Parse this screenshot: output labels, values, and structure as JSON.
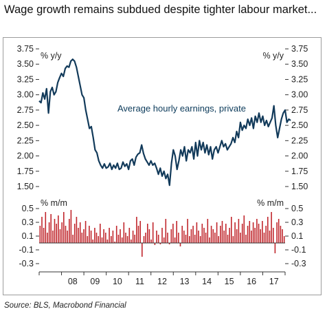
{
  "title": "Wage growth remains subdued despite tighter labour market...",
  "source": "Source: BLS, Macrobond Financial",
  "colors": {
    "line": "#123a5a",
    "bars": "#c0262c",
    "axis": "#333333",
    "frame": "#9c9c9c"
  },
  "chart_data": [
    {
      "type": "line",
      "title": "",
      "series": [
        {
          "name": "Average hourly earnings, private"
        }
      ],
      "unit_left": "% y/y",
      "unit_right": "% y/y",
      "ylim": [
        1.5,
        3.75
      ],
      "yticks": [
        "3.75",
        "3.50",
        "3.25",
        "3.00",
        "2.75",
        "2.50",
        "2.25",
        "2.00",
        "1.75",
        "1.50"
      ],
      "xlim": [
        2007.0,
        2018.0
      ],
      "values": [
        [
          2007.0,
          2.9
        ],
        [
          2007.083,
          2.87
        ],
        [
          2007.167,
          3.03
        ],
        [
          2007.25,
          2.93
        ],
        [
          2007.333,
          3.1
        ],
        [
          2007.417,
          2.7
        ],
        [
          2007.5,
          3.05
        ],
        [
          2007.583,
          3.12
        ],
        [
          2007.667,
          3.0
        ],
        [
          2007.75,
          3.05
        ],
        [
          2007.833,
          3.2
        ],
        [
          2007.917,
          3.28
        ],
        [
          2008.0,
          3.35
        ],
        [
          2008.083,
          3.3
        ],
        [
          2008.167,
          3.43
        ],
        [
          2008.25,
          3.47
        ],
        [
          2008.333,
          3.45
        ],
        [
          2008.417,
          3.55
        ],
        [
          2008.5,
          3.58
        ],
        [
          2008.583,
          3.55
        ],
        [
          2008.667,
          3.45
        ],
        [
          2008.75,
          3.3
        ],
        [
          2008.833,
          3.15
        ],
        [
          2008.917,
          3.0
        ],
        [
          2009.0,
          2.95
        ],
        [
          2009.083,
          2.75
        ],
        [
          2009.167,
          2.6
        ],
        [
          2009.25,
          2.45
        ],
        [
          2009.333,
          2.48
        ],
        [
          2009.417,
          2.3
        ],
        [
          2009.5,
          2.1
        ],
        [
          2009.583,
          2.05
        ],
        [
          2009.667,
          1.92
        ],
        [
          2009.75,
          1.85
        ],
        [
          2009.833,
          1.8
        ],
        [
          2009.917,
          1.87
        ],
        [
          2010.0,
          1.8
        ],
        [
          2010.083,
          1.82
        ],
        [
          2010.167,
          1.88
        ],
        [
          2010.25,
          1.78
        ],
        [
          2010.333,
          1.85
        ],
        [
          2010.417,
          1.8
        ],
        [
          2010.5,
          1.88
        ],
        [
          2010.583,
          1.78
        ],
        [
          2010.667,
          1.8
        ],
        [
          2010.75,
          1.9
        ],
        [
          2010.833,
          1.83
        ],
        [
          2010.917,
          1.87
        ],
        [
          2011.0,
          1.78
        ],
        [
          2011.083,
          1.92
        ],
        [
          2011.167,
          1.95
        ],
        [
          2011.25,
          1.85
        ],
        [
          2011.333,
          1.98
        ],
        [
          2011.417,
          2.03
        ],
        [
          2011.5,
          2.05
        ],
        [
          2011.583,
          2.18
        ],
        [
          2011.667,
          2.04
        ],
        [
          2011.75,
          1.95
        ],
        [
          2011.833,
          1.9
        ],
        [
          2011.917,
          1.85
        ],
        [
          2012.0,
          1.92
        ],
        [
          2012.083,
          1.85
        ],
        [
          2012.167,
          1.88
        ],
        [
          2012.25,
          1.8
        ],
        [
          2012.333,
          1.7
        ],
        [
          2012.417,
          1.8
        ],
        [
          2012.5,
          1.67
        ],
        [
          2012.583,
          1.75
        ],
        [
          2012.667,
          1.63
        ],
        [
          2012.75,
          1.7
        ],
        [
          2012.833,
          1.52
        ],
        [
          2012.917,
          1.88
        ],
        [
          2013.0,
          2.1
        ],
        [
          2013.083,
          2.0
        ],
        [
          2013.167,
          1.78
        ],
        [
          2013.25,
          1.92
        ],
        [
          2013.333,
          2.1
        ],
        [
          2013.417,
          2.0
        ],
        [
          2013.5,
          2.15
        ],
        [
          2013.583,
          1.92
        ],
        [
          2013.667,
          2.1
        ],
        [
          2013.75,
          2.05
        ],
        [
          2013.833,
          2.15
        ],
        [
          2013.917,
          1.95
        ],
        [
          2014.0,
          2.22
        ],
        [
          2014.083,
          2.0
        ],
        [
          2014.167,
          2.25
        ],
        [
          2014.25,
          2.1
        ],
        [
          2014.333,
          2.22
        ],
        [
          2014.417,
          2.05
        ],
        [
          2014.5,
          2.18
        ],
        [
          2014.583,
          2.02
        ],
        [
          2014.667,
          2.15
        ],
        [
          2014.75,
          1.95
        ],
        [
          2014.833,
          2.1
        ],
        [
          2014.917,
          2.15
        ],
        [
          2015.0,
          2.05
        ],
        [
          2015.083,
          2.15
        ],
        [
          2015.167,
          2.25
        ],
        [
          2015.25,
          2.15
        ],
        [
          2015.333,
          2.2
        ],
        [
          2015.417,
          2.1
        ],
        [
          2015.5,
          2.15
        ],
        [
          2015.583,
          2.2
        ],
        [
          2015.667,
          2.3
        ],
        [
          2015.75,
          2.22
        ],
        [
          2015.833,
          2.4
        ],
        [
          2015.917,
          2.3
        ],
        [
          2016.0,
          2.55
        ],
        [
          2016.083,
          2.42
        ],
        [
          2016.167,
          2.5
        ],
        [
          2016.25,
          2.45
        ],
        [
          2016.333,
          2.6
        ],
        [
          2016.417,
          2.5
        ],
        [
          2016.5,
          2.62
        ],
        [
          2016.583,
          2.45
        ],
        [
          2016.667,
          2.65
        ],
        [
          2016.75,
          2.55
        ],
        [
          2016.833,
          2.7
        ],
        [
          2016.917,
          2.55
        ],
        [
          2017.0,
          2.65
        ],
        [
          2017.083,
          2.5
        ],
        [
          2017.167,
          2.58
        ],
        [
          2017.25,
          2.48
        ],
        [
          2017.333,
          2.55
        ],
        [
          2017.417,
          2.62
        ],
        [
          2017.5,
          2.82
        ],
        [
          2017.583,
          2.5
        ],
        [
          2017.667,
          2.3
        ],
        [
          2017.75,
          2.45
        ],
        [
          2017.833,
          2.6
        ],
        [
          2017.917,
          2.7
        ],
        [
          2018.0,
          2.75
        ],
        [
          2018.083,
          2.55
        ],
        [
          2018.167,
          2.6
        ],
        [
          2018.25,
          2.58
        ]
      ]
    },
    {
      "type": "bar",
      "title": "",
      "unit_left": "% m/m",
      "unit_right": "% m/m",
      "ylim": [
        -0.3,
        0.5
      ],
      "yticks": [
        "0.5",
        "0.3",
        "0.1",
        "-0.1",
        "-0.3"
      ],
      "xlim": [
        2007.0,
        2018.0
      ],
      "xticks": [
        "08",
        "09",
        "10",
        "11",
        "12",
        "13",
        "14",
        "15",
        "16",
        "17"
      ],
      "values": [
        0.25,
        0.38,
        0.22,
        0.45,
        0.15,
        0.3,
        0.42,
        0.18,
        0.35,
        0.28,
        0.4,
        0.2,
        0.3,
        0.45,
        0.25,
        0.18,
        0.35,
        0.48,
        0.12,
        0.28,
        0.38,
        0.22,
        0.3,
        0.15,
        0.2,
        0.32,
        0.1,
        0.25,
        0.18,
        0.05,
        0.22,
        0.15,
        0.1,
        0.28,
        0.08,
        0.2,
        0.15,
        0.05,
        0.22,
        0.1,
        0.18,
        0.02,
        0.25,
        0.12,
        0.2,
        0.08,
        0.3,
        0.15,
        0.1,
        0.22,
        0.05,
        0.18,
        0.12,
        0.38,
        0.25,
        0.32,
        -0.2,
        0.1,
        0.15,
        0.28,
        0.2,
        0.05,
        0.3,
        -0.03,
        0.18,
        0.12,
        -0.02,
        0.22,
        0.08,
        0.35,
        0.15,
        -0.02,
        0.2,
        0.28,
        0.08,
        0.32,
        0.15,
        -0.05,
        0.25,
        0.18,
        0.12,
        0.35,
        0.1,
        0.2,
        0.25,
        0.12,
        0.3,
        0.18,
        0.1,
        0.28,
        0.22,
        0.15,
        0.35,
        0.08,
        0.25,
        0.2,
        0.15,
        0.3,
        0.1,
        0.25,
        0.32,
        0.18,
        0.28,
        0.12,
        0.22,
        0.38,
        0.1,
        0.3,
        0.2,
        0.35,
        0.15,
        0.28,
        0.4,
        0.12,
        0.25,
        0.32,
        0.18,
        0.3,
        0.22,
        0.35,
        0.28,
        0.2,
        0.32,
        0.15,
        0.25,
        0.38,
        0.18,
        0.45,
        0.22,
        -0.15,
        0.3,
        0.35,
        0.25,
        0.2,
        0.1
      ]
    }
  ]
}
